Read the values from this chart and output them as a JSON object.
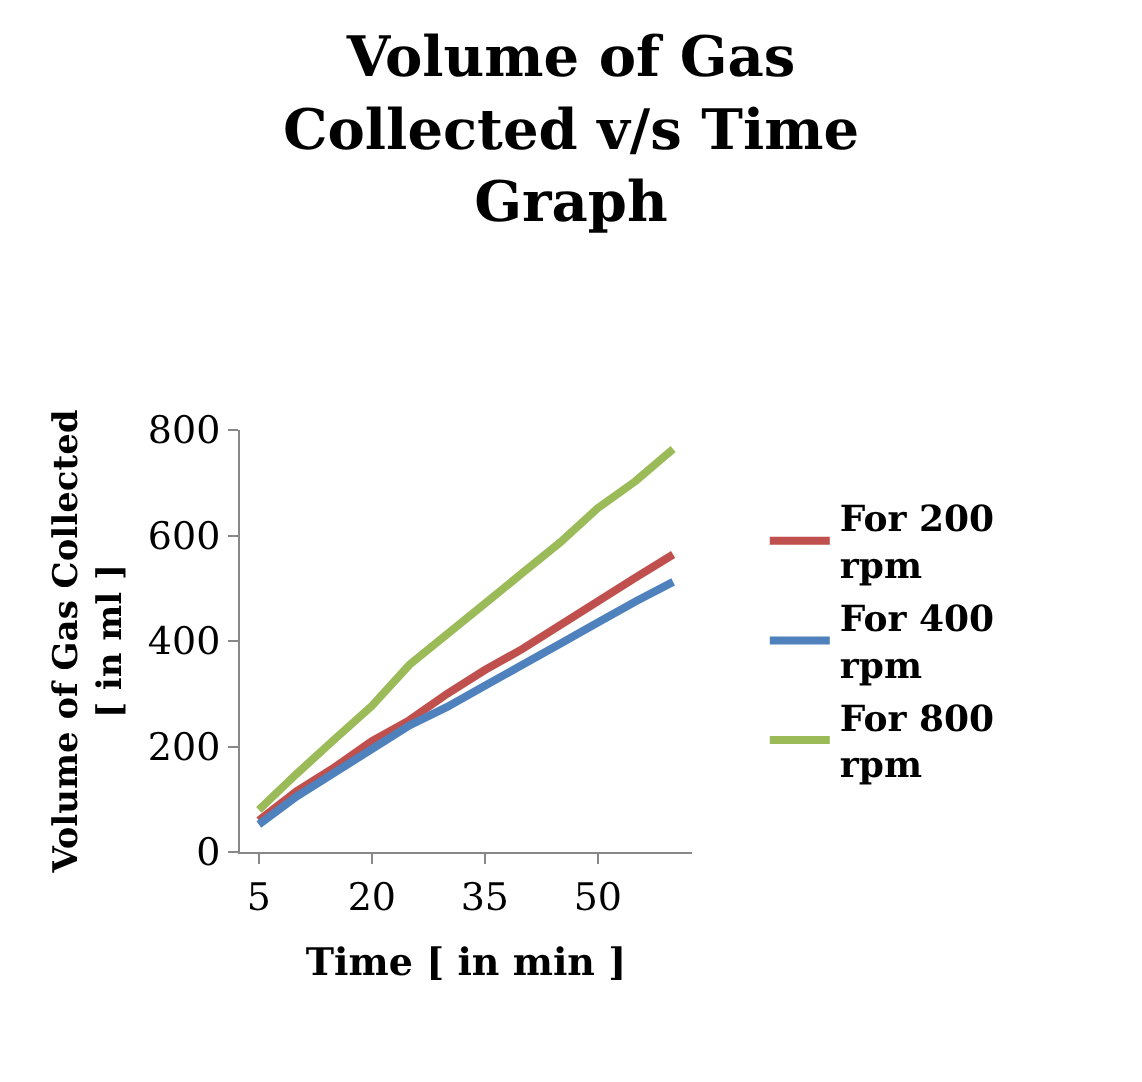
{
  "chart_data": {
    "type": "line",
    "title": "Volume of Gas Collected v/s Time Graph",
    "xlabel": "Time [ in min ]",
    "ylabel": "Volume of Gas Collected [ in ml ]",
    "categories": [
      "5",
      null,
      null,
      "20",
      null,
      null,
      "35",
      null,
      null,
      "50",
      null,
      null
    ],
    "series": [
      {
        "name": "For 200 rpm",
        "color": "#c0504d",
        "values": [
          60,
          115,
          160,
          210,
          250,
          300,
          345,
          385,
          430,
          475,
          520,
          564
        ]
      },
      {
        "name": "For 400 rpm",
        "color": "#4f81bd",
        "values": [
          52,
          105,
          150,
          195,
          240,
          275,
          315,
          355,
          395,
          435,
          475,
          512
        ]
      },
      {
        "name": "For 800 rpm",
        "color": "#9bbb59",
        "values": [
          80,
          148,
          213,
          277,
          355,
          413,
          471,
          529,
          587,
          652,
          703,
          764
        ]
      }
    ],
    "ylim": [
      0,
      800
    ],
    "yticks": [
      0,
      200,
      400,
      600,
      800
    ],
    "legend": "right",
    "marker": "none",
    "line_style": "solid"
  }
}
